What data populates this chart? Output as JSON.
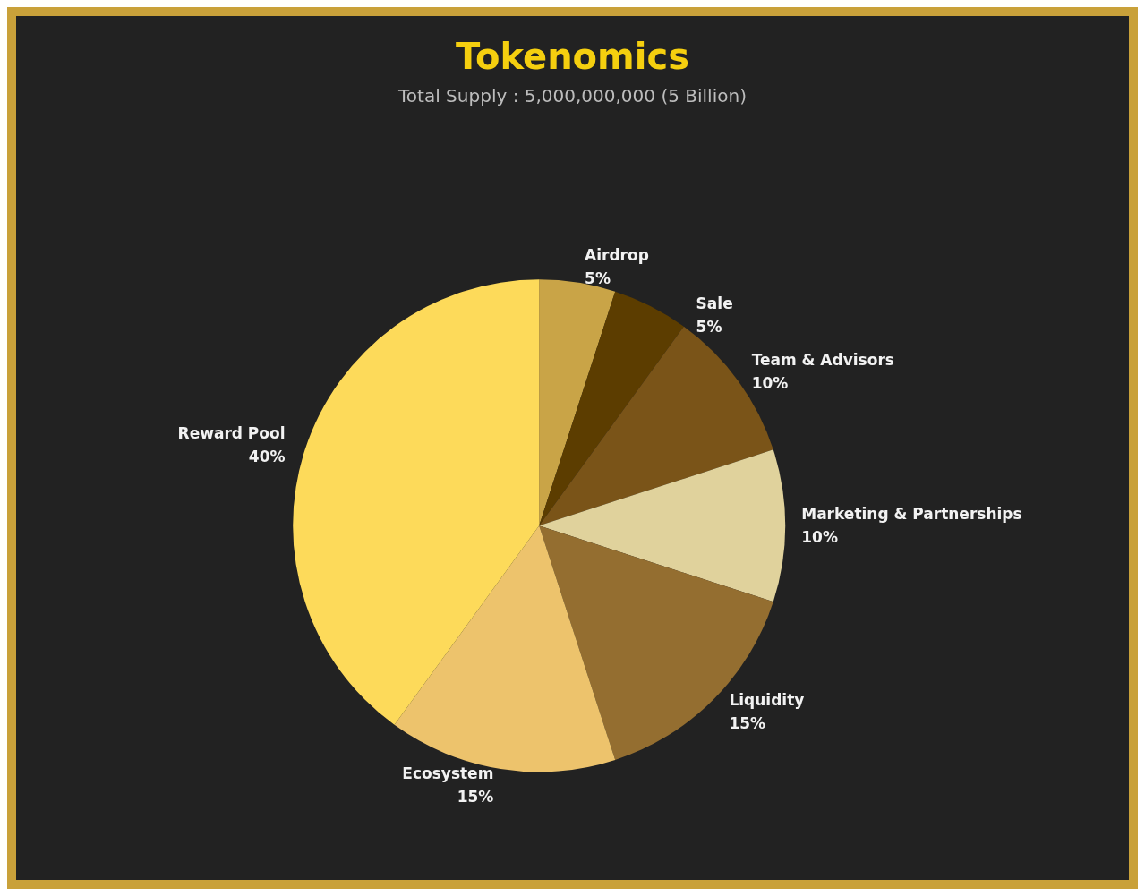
{
  "chart_data": {
    "type": "pie",
    "title": "Tokenomics",
    "subtitle": "Total Supply : 5,000,000,000 (5 Billion)",
    "categories": [
      "Airdrop",
      "Sale",
      "Team & Advisors",
      "Marketing & Partnerships",
      "Liquidity",
      "Ecosystem",
      "Reward Pool"
    ],
    "values": [
      5,
      5,
      10,
      10,
      15,
      15,
      40
    ],
    "colors": [
      "#c9a447",
      "#5c3d00",
      "#7a5418",
      "#e0d29c",
      "#946e30",
      "#edc36c",
      "#fdda5a"
    ],
    "value_labels": [
      "5%",
      "5%",
      "10%",
      "10%",
      "15%",
      "15%",
      "40%"
    ],
    "legend": false
  }
}
